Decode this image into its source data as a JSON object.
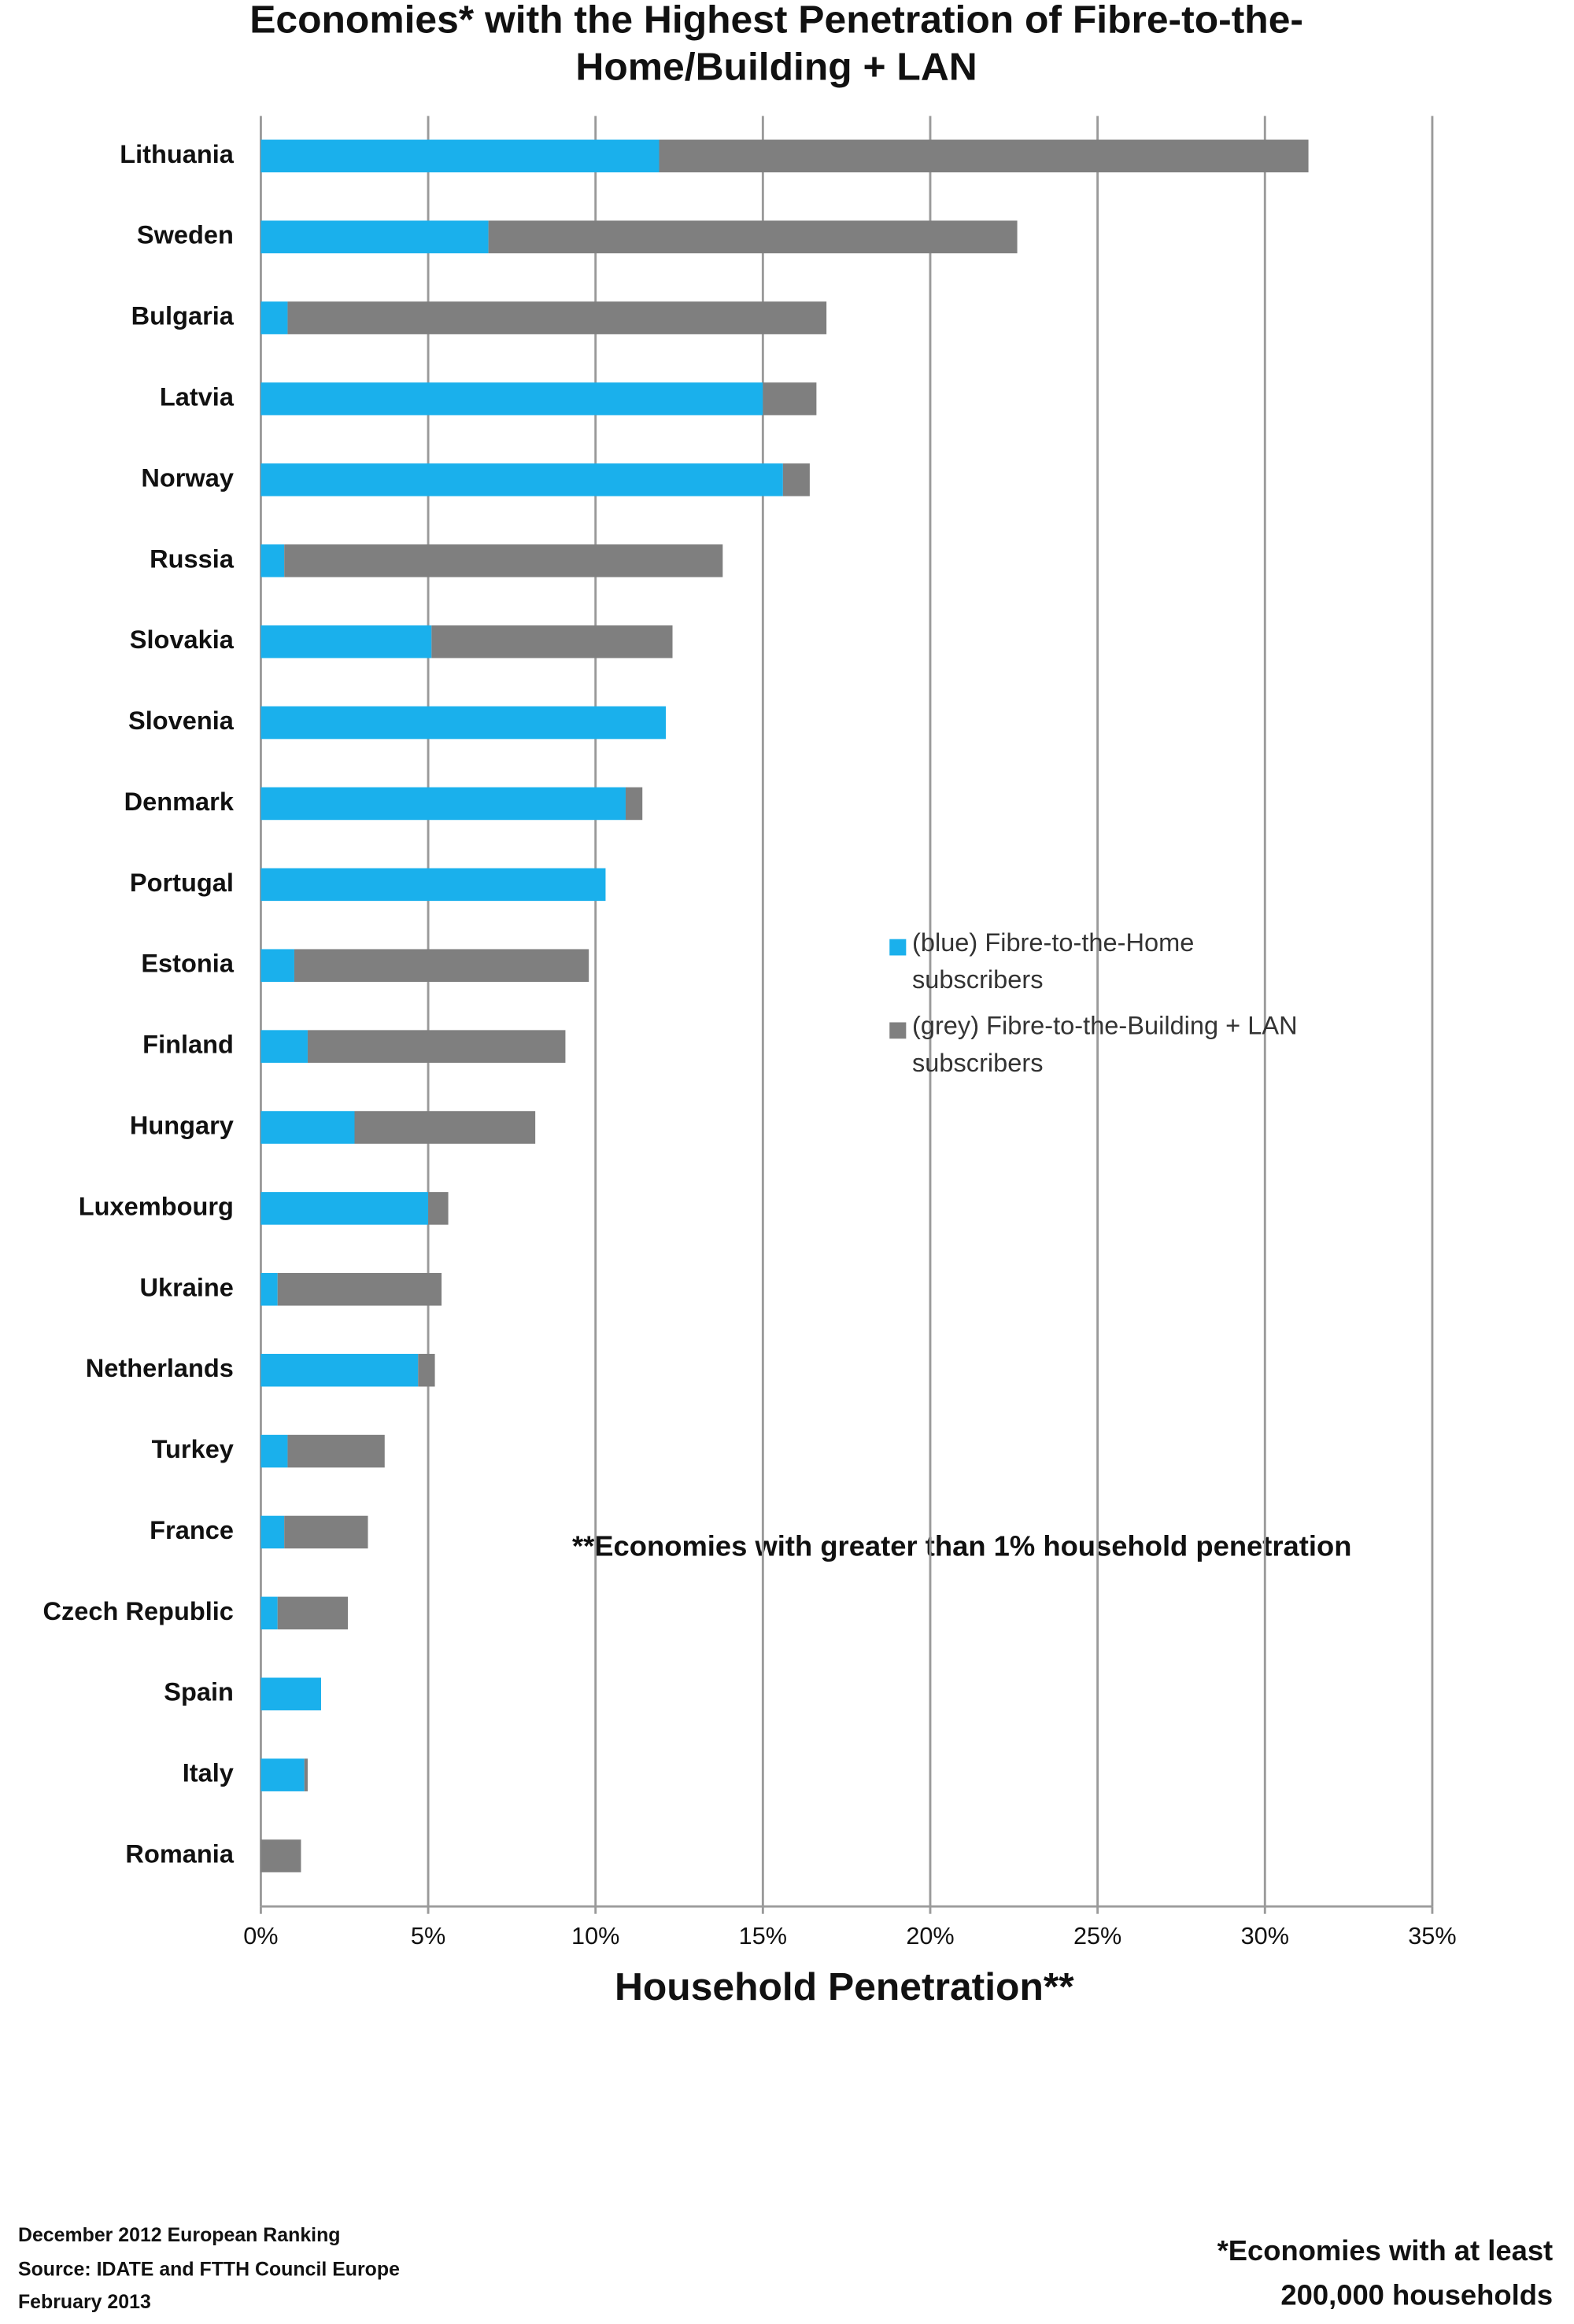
{
  "chart_data": {
    "type": "stacked_barh",
    "title": [
      "Economies* with the Highest Penetration of Fibre-to-the-",
      "Home/Building + LAN"
    ],
    "x_label": "Household Penetration**",
    "annotation": "**Economies with greater than 1% household penetration",
    "footer_left": [
      "December 2012 European Ranking",
      "Source: IDATE and FTTH Council Europe",
      "February 2013"
    ],
    "footer_right": [
      "*Economies with at least",
      "200,000 households"
    ],
    "categories": [
      "Lithuania",
      "Sweden",
      "Bulgaria",
      "Latvia",
      "Norway",
      "Russia",
      "Slovakia",
      "Slovenia",
      "Denmark",
      "Portugal",
      "Estonia",
      "Finland",
      "Hungary",
      "Luxembourg",
      "Ukraine",
      "Netherlands",
      "Turkey",
      "France",
      "Czech Republic",
      "Spain",
      "Italy",
      "Romania"
    ],
    "series": [
      {
        "name": "(blue) Fibre-to-the-Home subscribers",
        "color": "#1ab0ec",
        "values": [
          11.9,
          6.8,
          0.8,
          15.0,
          15.6,
          0.7,
          5.1,
          12.1,
          10.9,
          10.3,
          1.0,
          1.4,
          2.8,
          5.0,
          0.5,
          4.7,
          0.8,
          0.7,
          0.5,
          1.8,
          1.3,
          0
        ]
      },
      {
        "name": "(grey) Fibre-to-the-Building + LAN subscribers",
        "color": "#7f7f7f",
        "values": [
          19.4,
          15.8,
          16.1,
          1.6,
          0.8,
          13.1,
          7.2,
          0,
          0.5,
          0,
          8.8,
          7.7,
          5.4,
          0.6,
          4.9,
          0.5,
          2.9,
          2.5,
          2.1,
          0,
          0.1,
          1.2
        ]
      }
    ],
    "xlim": [
      0,
      35
    ],
    "xticks": [
      {
        "value": 0,
        "label": "0%"
      },
      {
        "value": 5,
        "label": "5%"
      },
      {
        "value": 10,
        "label": "10%"
      },
      {
        "value": 15,
        "label": "15%"
      },
      {
        "value": 20,
        "label": "20%"
      },
      {
        "value": 25,
        "label": "25%"
      },
      {
        "value": 30,
        "label": "30%"
      },
      {
        "value": 35,
        "label": "35%"
      }
    ],
    "grid": true
  }
}
